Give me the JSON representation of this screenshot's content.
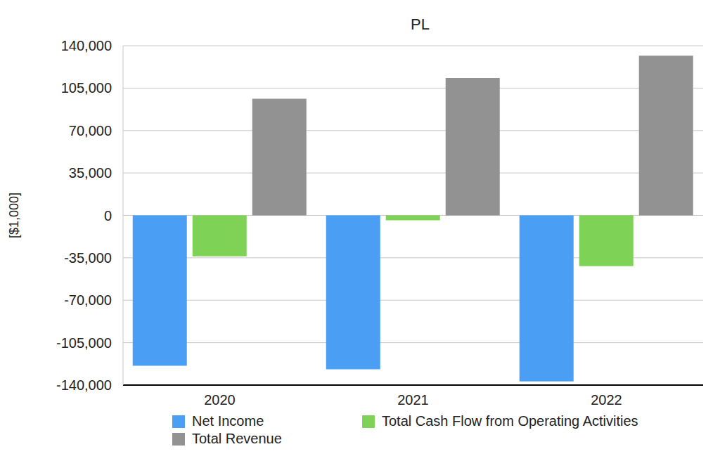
{
  "chart_data": {
    "type": "bar",
    "title": "PL",
    "y_label": "[$1,000]",
    "categories": [
      "2020",
      "2021",
      "2022"
    ],
    "series": [
      {
        "name": "Net Income",
        "color": "#4a9ff5",
        "values": [
          -124000,
          -127000,
          -137000
        ]
      },
      {
        "name": "Total Cash Flow from Operating Activities",
        "color": "#7ed357",
        "values": [
          -33700,
          -4100,
          -41900
        ]
      },
      {
        "name": "Total Revenue",
        "color": "#929292",
        "values": [
          96300,
          113400,
          131700
        ]
      }
    ],
    "ylim": [
      -140000,
      140000
    ],
    "yticks": [
      {
        "value": -140000,
        "label": "-140,000"
      },
      {
        "value": -105000,
        "label": "-105,000"
      },
      {
        "value": -70000,
        "label": "-70,000"
      },
      {
        "value": -35000,
        "label": "-35,000"
      },
      0,
      {
        "value": 35000,
        "label": "35,000"
      },
      {
        "value": 70000,
        "label": "70,000"
      },
      {
        "value": 105000,
        "label": "105,000"
      },
      {
        "value": 140000,
        "label": "140,000"
      }
    ],
    "grid": true,
    "legend": "bottom"
  }
}
